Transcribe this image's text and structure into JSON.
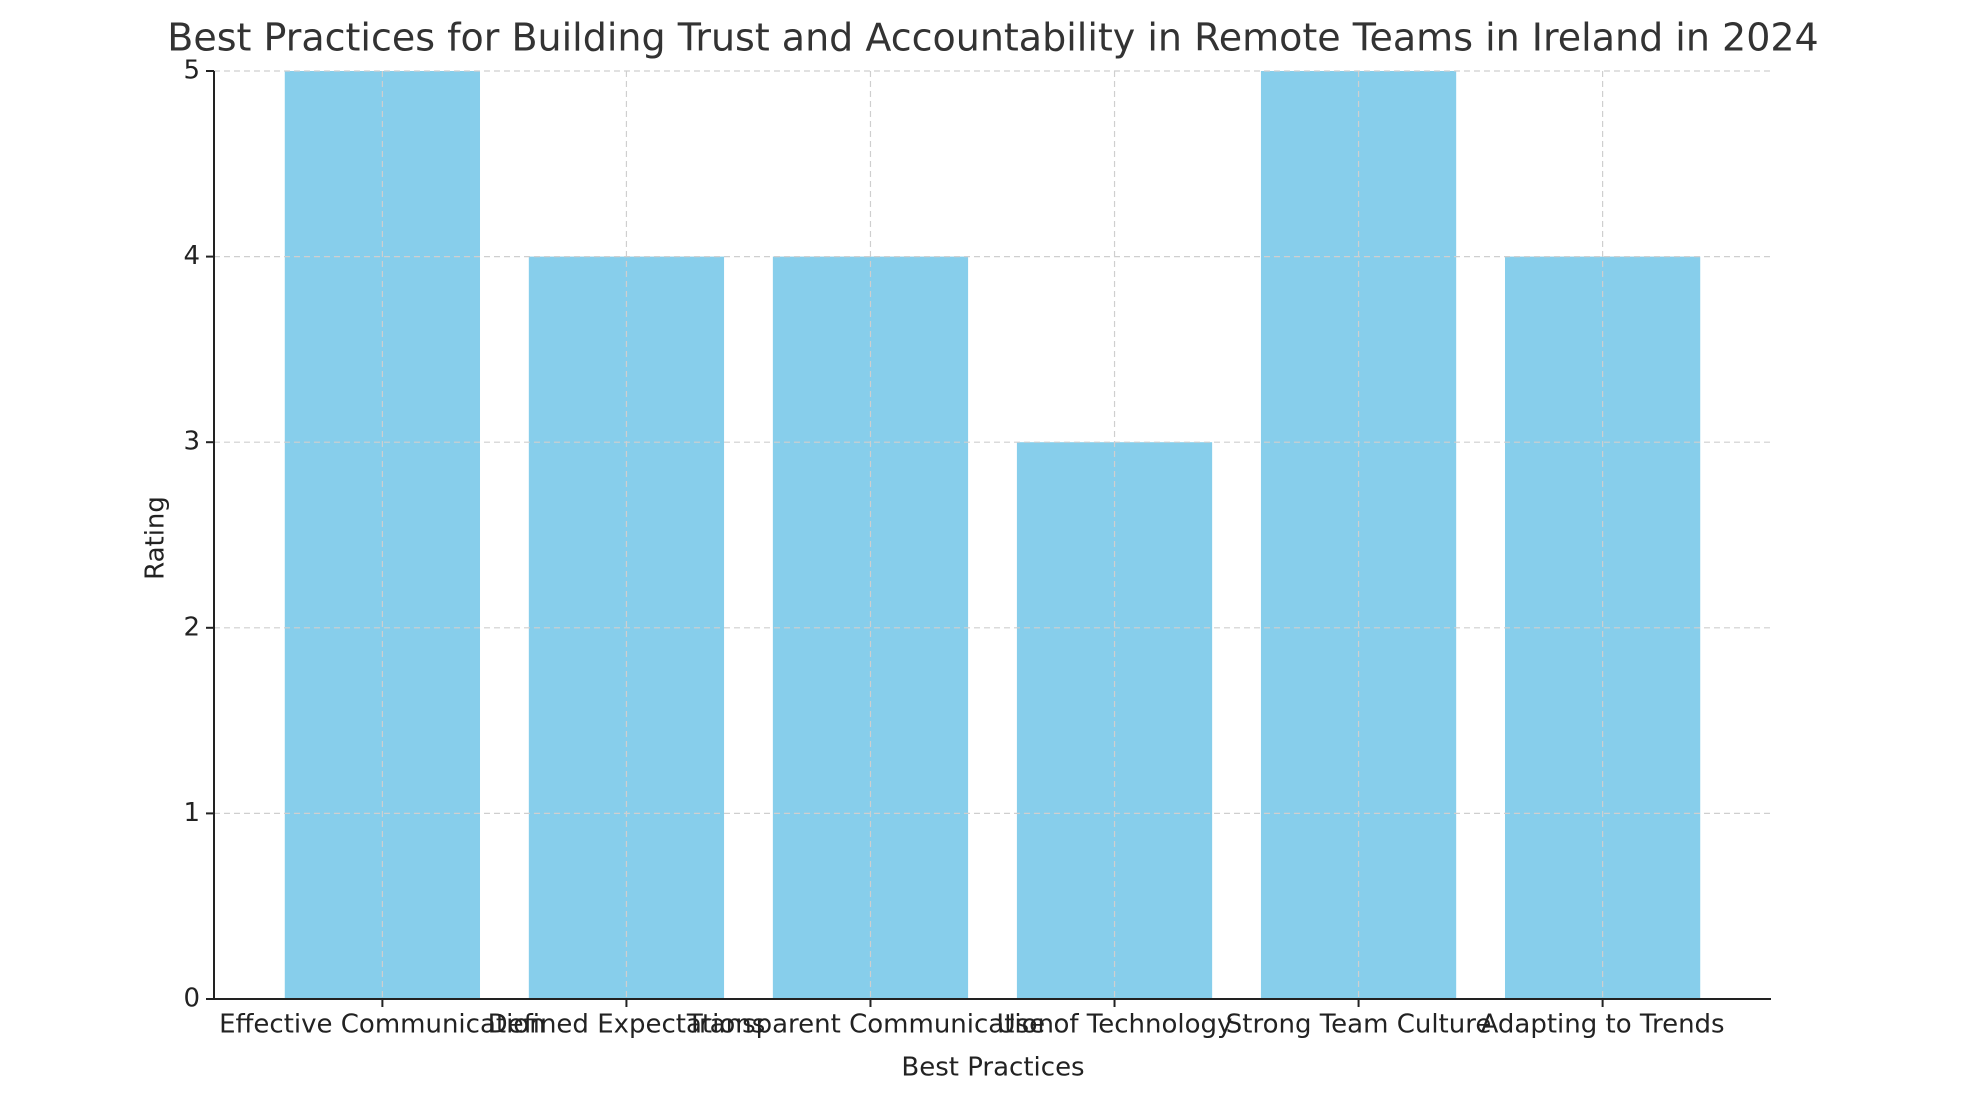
{
  "chart_data": {
    "type": "bar",
    "title": "Best Practices for Building Trust and Accountability in Remote Teams in Ireland in 2024",
    "x_label": "Best Practices",
    "y_label": "Rating",
    "categories": [
      "Effective Communication",
      "Defined Expectations",
      "Transparent Communication",
      "Use of Technology",
      "Strong Team Culture",
      "Adapting to Trends"
    ],
    "values": [
      5,
      4,
      4,
      3,
      5,
      4
    ],
    "color": "#87ceeb",
    "ylim": [
      0,
      5
    ],
    "yticks": [
      0,
      1,
      2,
      3,
      4,
      5
    ],
    "grid": true
  }
}
